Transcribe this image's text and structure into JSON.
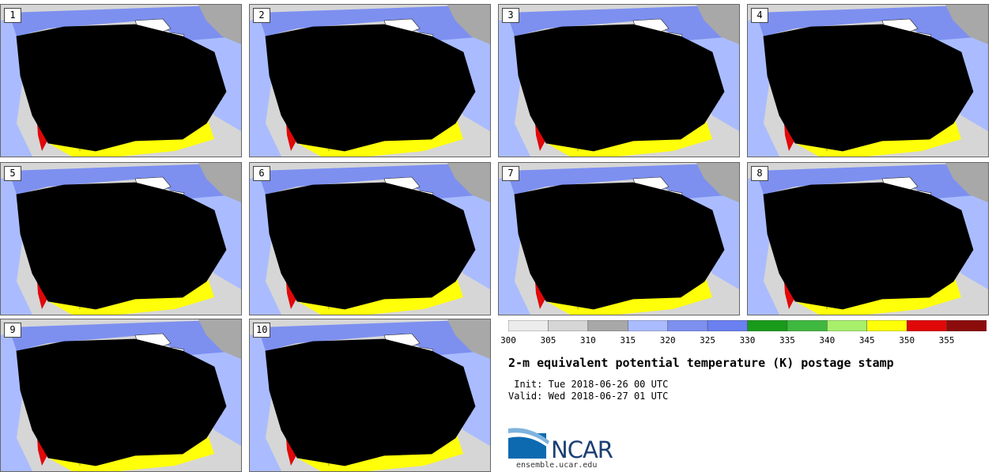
{
  "panels": [
    {
      "label": "1"
    },
    {
      "label": "2"
    },
    {
      "label": "3"
    },
    {
      "label": "4"
    },
    {
      "label": "5"
    },
    {
      "label": "6"
    },
    {
      "label": "7"
    },
    {
      "label": "8"
    },
    {
      "label": "9"
    },
    {
      "label": "10"
    }
  ],
  "colorbar": {
    "colors": [
      "#ececec",
      "#d6d6d6",
      "#a8a8a8",
      "#aabcff",
      "#7d90f0",
      "#6a7ff0",
      "#1a9a1a",
      "#3fb83f",
      "#a8ef6c",
      "#ffff0a",
      "#e00808",
      "#8c0c0c"
    ],
    "ticks": [
      "300",
      "305",
      "310",
      "315",
      "320",
      "325",
      "330",
      "335",
      "340",
      "345",
      "350",
      "355"
    ]
  },
  "title": "2-m equivalent potential temperature (K) postage stamp",
  "init": " Init: Tue 2018-06-26 00 UTC",
  "valid": "Valid: Wed 2018-06-27 01 UTC",
  "logo": {
    "text": "NCAR",
    "url": "ensemble.ucar.edu"
  }
}
